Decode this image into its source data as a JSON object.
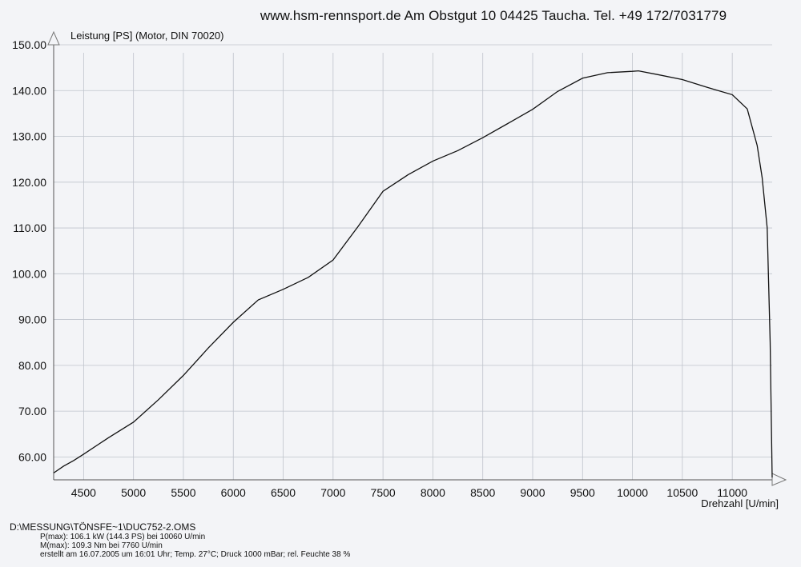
{
  "header": {
    "text": "www.hsm-rennsport.de Am Obstgut 10 04425 Taucha. Tel. +49 172/7031779"
  },
  "chart_data": {
    "type": "line",
    "title": "",
    "ylabel": "Leistung [PS] (Motor, DIN 70020)",
    "xlabel": "Drehzahl [U/min]",
    "xlim": [
      4200,
      11400
    ],
    "ylim": [
      55,
      150
    ],
    "x_ticks": [
      4500,
      5000,
      5500,
      6000,
      6500,
      7000,
      7500,
      8000,
      8500,
      9000,
      9500,
      10000,
      10500,
      11000
    ],
    "y_ticks": [
      "60.00",
      "70.00",
      "80.00",
      "90.00",
      "100.00",
      "110.00",
      "120.00",
      "130.00",
      "140.00",
      "150.00"
    ],
    "grid": true,
    "series": [
      {
        "x": [
          4200,
          4300,
          4400,
          4500,
          4750,
          5000,
          5250,
          5500,
          5750,
          6000,
          6250,
          6500,
          6750,
          7000,
          7250,
          7500,
          7750,
          8000,
          8250,
          8500,
          8750,
          9000,
          9250,
          9500,
          9750,
          10000,
          10060,
          10250,
          10500,
          10750,
          11000,
          11150,
          11250,
          11300,
          11350,
          11380,
          11400
        ],
        "y": [
          56.5,
          58.0,
          59.2,
          60.6,
          64.2,
          67.6,
          72.5,
          77.8,
          83.8,
          89.4,
          94.3,
          96.6,
          99.2,
          103.0,
          110.3,
          118.0,
          121.6,
          124.6,
          126.9,
          129.7,
          132.8,
          135.9,
          139.8,
          142.7,
          143.9,
          144.2,
          144.3,
          143.5,
          142.4,
          140.7,
          139.1,
          136.0,
          128.0,
          121.0,
          110.0,
          85.0,
          55.5
        ]
      }
    ]
  },
  "footer": {
    "file": "D:\\MESSUNG\\TÖNSFE~1\\DUC752-2.OMS",
    "pmax": "P(max): 106.1 kW (144.3 PS) bei 10060 U/min",
    "mmax": "M(max): 109.3 Nm bei 7760 U/min",
    "created": "erstellt am 16.07.2005 um 16:01 Uhr; Temp. 27°C; Druck 1000 mBar; rel. Feuchte 38 %"
  }
}
